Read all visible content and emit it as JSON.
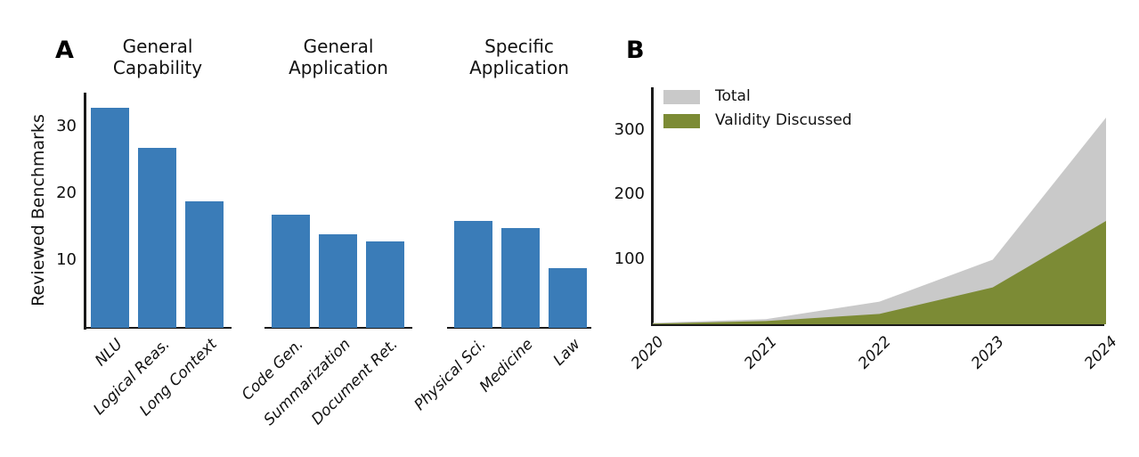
{
  "figure_type": "two-panel scientific figure",
  "chart_data": [
    {
      "type": "bar",
      "panel_label": "A",
      "ylabel": "Reviewed Benchmarks",
      "yticks": [
        10,
        20,
        30
      ],
      "ylim": [
        0,
        35
      ],
      "bar_color": "#3a7cb8",
      "axis_color": "#1a1a1a",
      "grid": false,
      "groups": [
        {
          "title": "General\nCapability",
          "categories": [
            "NLU",
            "Logical Reas.",
            "Long Context"
          ],
          "values": [
            33,
            27,
            19
          ]
        },
        {
          "title": "General\nApplication",
          "categories": [
            "Code Gen.",
            "Summarization",
            "Document Ret."
          ],
          "values": [
            17,
            14,
            13
          ]
        },
        {
          "title": "Specific\nApplication",
          "categories": [
            "Physical Sci.",
            "Medicine",
            "Law"
          ],
          "values": [
            16,
            15,
            9
          ]
        }
      ]
    },
    {
      "type": "area",
      "panel_label": "B",
      "x": [
        2020,
        2021,
        2022,
        2023,
        2024
      ],
      "xtick_labels": [
        "2020",
        "2021",
        "2022",
        "2023",
        "2024"
      ],
      "yticks": [
        100,
        200,
        300
      ],
      "ylim": [
        0,
        365
      ],
      "grid": false,
      "legend_position": "upper-left",
      "series": [
        {
          "name": "Total",
          "color": "#c9c9c9",
          "values": [
            2,
            8,
            35,
            100,
            320
          ]
        },
        {
          "name": "Validity Discussed",
          "color": "#7c8b35",
          "values": [
            1,
            5,
            16,
            57,
            160
          ]
        }
      ]
    }
  ]
}
